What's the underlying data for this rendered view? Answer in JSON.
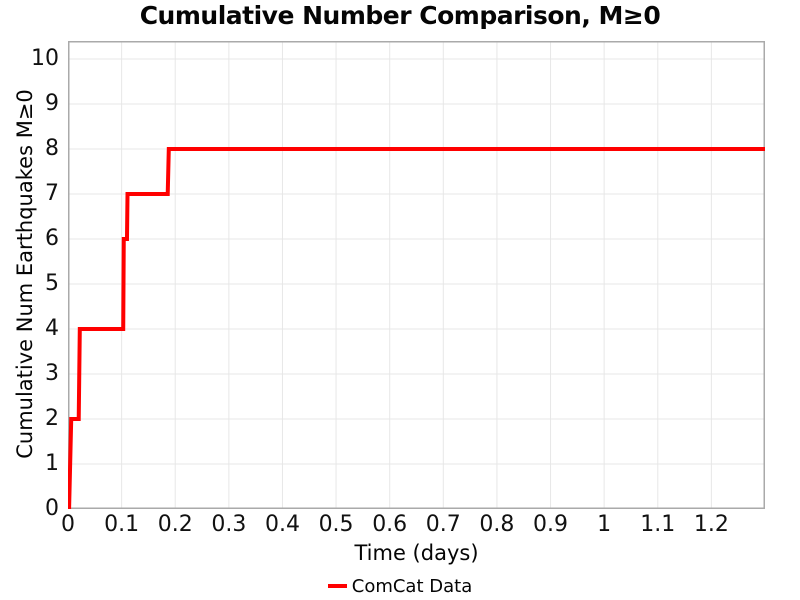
{
  "chart_data": {
    "type": "line",
    "line_style": "step-cumulative",
    "title": "Cumulative Number Comparison, M≥0",
    "xlabel": "Time (days)",
    "ylabel": "Cumulative Num Earthquakes M≥0",
    "xlim": [
      0,
      1.3
    ],
    "ylim": [
      0,
      10.4
    ],
    "grid": true,
    "xticks": {
      "values": [
        0,
        0.1,
        0.2,
        0.3,
        0.4,
        0.5,
        0.6,
        0.7,
        0.8,
        0.9,
        1,
        1.1,
        1.2
      ],
      "labels": [
        "0",
        "0.1",
        "0.2",
        "0.3",
        "0.4",
        "0.5",
        "0.6",
        "0.7",
        "0.8",
        "0.9",
        "1",
        "1.1",
        "1.2"
      ]
    },
    "yticks": {
      "values": [
        0,
        1,
        2,
        3,
        4,
        5,
        6,
        7,
        8,
        9,
        10
      ],
      "labels": [
        "0",
        "1",
        "2",
        "3",
        "4",
        "5",
        "6",
        "7",
        "8",
        "9",
        "10"
      ]
    },
    "legend": {
      "position": "bottom-center",
      "entries": [
        {
          "label": "ComCat Data",
          "color": "#ff0000"
        }
      ]
    },
    "series": [
      {
        "name": "ComCat Data",
        "color": "#ff0000",
        "line_width": 4,
        "event_times_days": [
          0.003,
          0.005,
          0.021,
          0.022,
          0.103,
          0.104,
          0.11,
          0.187
        ],
        "cumulative_counts": [
          1,
          2,
          3,
          4,
          5,
          6,
          7,
          8
        ],
        "final_count": 8,
        "step_points": [
          [
            0.002,
            0
          ],
          [
            0.006,
            2
          ],
          [
            0.02,
            2
          ],
          [
            0.022,
            4
          ],
          [
            0.103,
            4
          ],
          [
            0.104,
            6
          ],
          [
            0.11,
            6
          ],
          [
            0.111,
            7
          ],
          [
            0.186,
            7
          ],
          [
            0.188,
            8
          ],
          [
            1.3,
            8
          ]
        ]
      }
    ]
  },
  "colors": {
    "background": "#ffffff",
    "gridline": "#e7e7e7",
    "spine": "#aaaaaa",
    "text": "#000000"
  }
}
